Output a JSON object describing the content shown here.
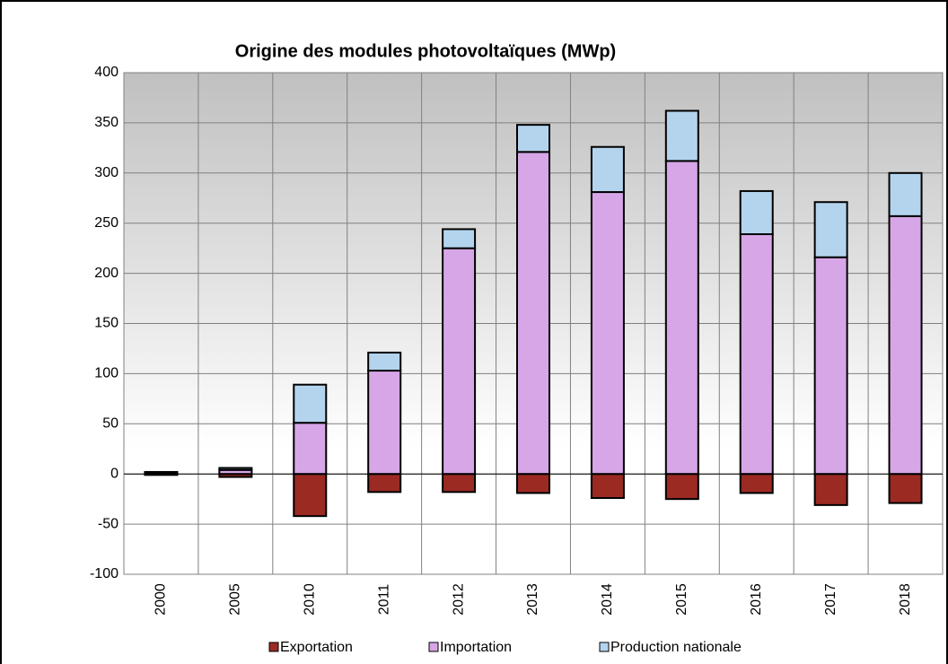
{
  "chart_data": {
    "type": "stacked_bar",
    "title": "Origine des modules photovoltaïques (MWp)",
    "categories": [
      "2000",
      "2005",
      "2010",
      "2011",
      "2012",
      "2013",
      "2014",
      "2015",
      "2016",
      "2017",
      "2018"
    ],
    "series": [
      {
        "name": "Exportation",
        "color": "#9b2a23",
        "values": [
          -1,
          -3,
          -42,
          -18,
          -18,
          -19,
          -24,
          -25,
          -19,
          -31,
          -29
        ]
      },
      {
        "name": "Importation",
        "color": "#d6a6e6",
        "values": [
          1,
          4,
          51,
          103,
          225,
          321,
          281,
          312,
          239,
          216,
          257
        ]
      },
      {
        "name": "Production nationale",
        "color": "#b4d4ee",
        "values": [
          1,
          2,
          38,
          18,
          19,
          27,
          45,
          50,
          43,
          55,
          43
        ]
      }
    ],
    "ylim": [
      -100,
      400
    ],
    "yticks": [
      -100,
      -50,
      0,
      50,
      100,
      150,
      200,
      250,
      300,
      350,
      400
    ],
    "grid": true,
    "legend": "bottom"
  }
}
